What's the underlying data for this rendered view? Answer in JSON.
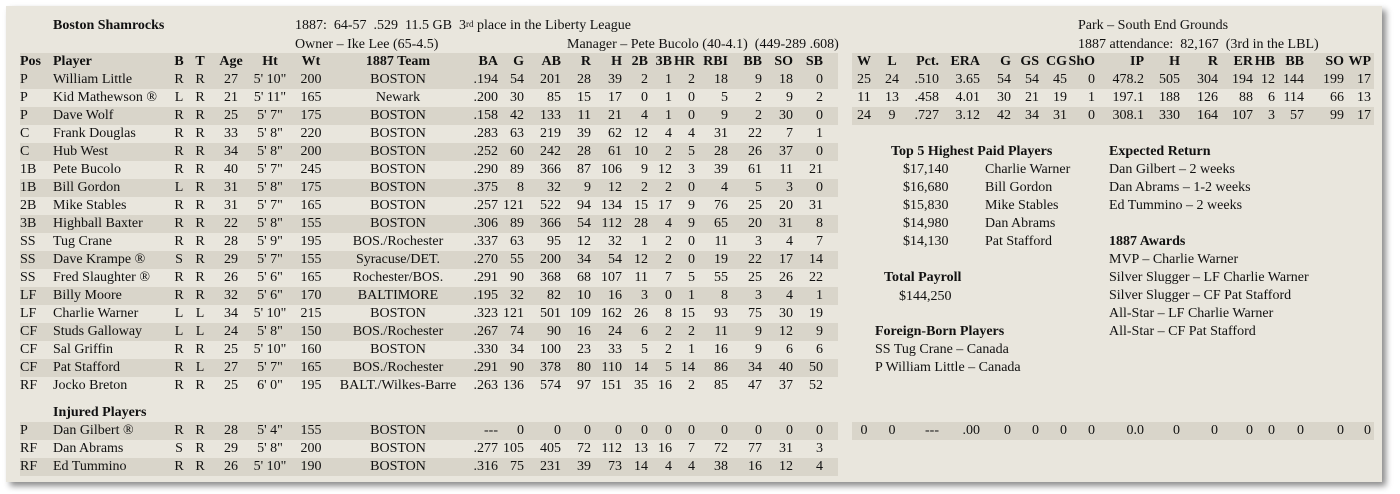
{
  "header": {
    "team_name": "Boston Shamrocks",
    "season_line_pre": "1887:  64-57  .529  11.5 GB  3",
    "season_line_sup": "rd",
    "season_line_post": " place in the Liberty League",
    "owner": "Owner – Ike Lee (65-4.5)",
    "manager": "Manager – Pete Bucolo (40-4.1)  (449-289 .608)",
    "park": "Park – South End Grounds",
    "attendance": "1887 attendance:  82,167  (3rd in the LBL)"
  },
  "columns": [
    "Pos",
    "Player",
    "B",
    "T",
    "Age",
    "Ht",
    "Wt",
    "1887 Team",
    "BA",
    "G",
    "AB",
    "R",
    "H",
    "2B",
    "3B",
    "HR",
    "RBI",
    "BB",
    "SO",
    "SB"
  ],
  "pitch_columns": [
    "W",
    "L",
    "Pct.",
    "ERA",
    "G",
    "GS",
    "CG",
    "ShO",
    "IP",
    "H",
    "R",
    "ER",
    "HB",
    "BB",
    "SO",
    "WP"
  ],
  "players": [
    [
      "P",
      "William Little",
      "R",
      "R",
      "27",
      "5' 10\"",
      "200",
      "BOSTON",
      ".194",
      "54",
      "201",
      "28",
      "39",
      "2",
      "1",
      "2",
      "18",
      "9",
      "18",
      "0"
    ],
    [
      "P",
      "Kid Mathewson ®",
      "L",
      "R",
      "21",
      "5' 11\"",
      "165",
      "Newark",
      ".200",
      "30",
      "85",
      "15",
      "17",
      "0",
      "1",
      "0",
      "5",
      "2",
      "9",
      "2"
    ],
    [
      "P",
      "Dave Wolf",
      "R",
      "R",
      "25",
      "5' 7\"",
      "175",
      "BOSTON",
      ".158",
      "42",
      "133",
      "11",
      "21",
      "4",
      "1",
      "0",
      "9",
      "2",
      "30",
      "0"
    ],
    [
      "C",
      "Frank Douglas",
      "R",
      "R",
      "33",
      "5' 8\"",
      "220",
      "BOSTON",
      ".283",
      "63",
      "219",
      "39",
      "62",
      "12",
      "4",
      "4",
      "31",
      "22",
      "7",
      "1"
    ],
    [
      "C",
      "Hub West",
      "R",
      "R",
      "34",
      "5' 8\"",
      "200",
      "BOSTON",
      ".252",
      "60",
      "242",
      "28",
      "61",
      "10",
      "2",
      "5",
      "28",
      "26",
      "37",
      "0"
    ],
    [
      "1B",
      "Pete Bucolo",
      "R",
      "R",
      "40",
      "5' 7\"",
      "245",
      "BOSTON",
      ".290",
      "89",
      "366",
      "87",
      "106",
      "9",
      "12",
      "3",
      "39",
      "61",
      "11",
      "21"
    ],
    [
      "1B",
      "Bill Gordon",
      "L",
      "R",
      "31",
      "5' 8\"",
      "175",
      "BOSTON",
      ".375",
      "8",
      "32",
      "9",
      "12",
      "2",
      "2",
      "0",
      "4",
      "5",
      "3",
      "0"
    ],
    [
      "2B",
      "Mike Stables",
      "R",
      "R",
      "31",
      "5' 7\"",
      "165",
      "BOSTON",
      ".257",
      "121",
      "522",
      "94",
      "134",
      "15",
      "17",
      "9",
      "76",
      "25",
      "20",
      "31"
    ],
    [
      "3B",
      "Highball Baxter",
      "R",
      "R",
      "22",
      "5' 8\"",
      "155",
      "BOSTON",
      ".306",
      "89",
      "366",
      "54",
      "112",
      "28",
      "4",
      "9",
      "65",
      "20",
      "31",
      "8"
    ],
    [
      "SS",
      "Tug Crane",
      "R",
      "R",
      "28",
      "5' 9\"",
      "195",
      "BOS./Rochester",
      ".337",
      "63",
      "95",
      "12",
      "32",
      "1",
      "2",
      "0",
      "11",
      "3",
      "4",
      "7"
    ],
    [
      "SS",
      "Dave Krampe ®",
      "S",
      "R",
      "29",
      "5' 7\"",
      "155",
      "Syracuse/DET.",
      ".270",
      "55",
      "200",
      "34",
      "54",
      "12",
      "2",
      "0",
      "19",
      "22",
      "17",
      "14"
    ],
    [
      "SS",
      "Fred Slaughter ®",
      "R",
      "R",
      "26",
      "5' 6\"",
      "165",
      "Rochester/BOS.",
      ".291",
      "90",
      "368",
      "68",
      "107",
      "11",
      "7",
      "5",
      "55",
      "25",
      "26",
      "22"
    ],
    [
      "LF",
      "Billy Moore",
      "R",
      "R",
      "32",
      "5' 6\"",
      "170",
      "BALTIMORE",
      ".195",
      "32",
      "82",
      "10",
      "16",
      "3",
      "0",
      "1",
      "8",
      "3",
      "4",
      "1"
    ],
    [
      "LF",
      "Charlie Warner",
      "L",
      "L",
      "34",
      "5' 10\"",
      "215",
      "BOSTON",
      ".323",
      "121",
      "501",
      "109",
      "162",
      "26",
      "8",
      "15",
      "93",
      "75",
      "30",
      "19"
    ],
    [
      "CF",
      "Studs Galloway",
      "L",
      "L",
      "24",
      "5' 8\"",
      "150",
      "BOS./Rochester",
      ".267",
      "74",
      "90",
      "16",
      "24",
      "6",
      "2",
      "2",
      "11",
      "9",
      "12",
      "9"
    ],
    [
      "CF",
      "Sal Griffin",
      "R",
      "R",
      "25",
      "5' 10\"",
      "160",
      "BOSTON",
      ".330",
      "34",
      "100",
      "23",
      "33",
      "5",
      "2",
      "1",
      "16",
      "9",
      "6",
      "6"
    ],
    [
      "CF",
      "Pat Stafford",
      "R",
      "L",
      "27",
      "5' 7\"",
      "165",
      "BOS./Rochester",
      ".291",
      "90",
      "378",
      "80",
      "110",
      "14",
      "5",
      "14",
      "86",
      "34",
      "40",
      "50"
    ],
    [
      "RF",
      "Jocko Breton",
      "R",
      "R",
      "25",
      "6' 0\"",
      "195",
      "BALT./Wilkes-Barre",
      ".263",
      "136",
      "574",
      "97",
      "151",
      "35",
      "16",
      "2",
      "85",
      "47",
      "37",
      "52"
    ]
  ],
  "pitching": [
    [
      "25",
      "24",
      ".510",
      "3.65",
      "54",
      "54",
      "45",
      "0",
      "478.2",
      "505",
      "304",
      "194",
      "12",
      "144",
      "199",
      "17"
    ],
    [
      "11",
      "13",
      ".458",
      "4.01",
      "30",
      "21",
      "19",
      "1",
      "197.1",
      "188",
      "126",
      "88",
      "6",
      "114",
      "66",
      "13"
    ],
    [
      "24",
      "9",
      ".727",
      "3.12",
      "42",
      "34",
      "31",
      "0",
      "308.1",
      "330",
      "164",
      "107",
      "3",
      "57",
      "99",
      "17"
    ]
  ],
  "injured_title": "Injured Players",
  "injured": [
    [
      "P",
      "Dan Gilbert ®",
      "R",
      "R",
      "28",
      "5' 4\"",
      "155",
      "BOSTON",
      "---",
      "0",
      "0",
      "0",
      "0",
      "0",
      "0",
      "0",
      "0",
      "0",
      "0",
      "0"
    ],
    [
      "RF",
      "Dan Abrams",
      "S",
      "R",
      "29",
      "5' 8\"",
      "200",
      "BOSTON",
      ".277",
      "105",
      "405",
      "72",
      "112",
      "13",
      "16",
      "7",
      "72",
      "77",
      "31",
      "3"
    ],
    [
      "RF",
      "Ed Tummino",
      "R",
      "R",
      "26",
      "5' 10\"",
      "190",
      "BOSTON",
      ".316",
      "75",
      "231",
      "39",
      "73",
      "14",
      "4",
      "4",
      "38",
      "16",
      "12",
      "4"
    ]
  ],
  "injured_pitching": [
    "0",
    "0",
    "---",
    ".00",
    "0",
    "0",
    "0",
    "0",
    "0.0",
    "0",
    "0",
    "0",
    "0",
    "0",
    "0",
    "0"
  ],
  "top_paid": {
    "title": "Top 5 Highest Paid Players",
    "rows": [
      [
        "$17,140",
        "Charlie Warner"
      ],
      [
        "$16,680",
        "Bill Gordon"
      ],
      [
        "$15,830",
        "Mike Stables"
      ],
      [
        "$14,980",
        "Dan Abrams"
      ],
      [
        "$14,130",
        "Pat Stafford"
      ]
    ]
  },
  "payroll": {
    "title": "Total Payroll",
    "value": "$144,250"
  },
  "foreign": {
    "title": "Foreign-Born Players",
    "rows": [
      "SS Tug Crane – Canada",
      "P William Little – Canada"
    ]
  },
  "expected": {
    "title": "Expected Return",
    "rows": [
      "Dan Gilbert – 2 weeks",
      "Dan Abrams – 1-2 weeks",
      "Ed Tummino – 2 weeks"
    ]
  },
  "awards": {
    "title": "1887 Awards",
    "rows": [
      "MVP – Charlie Warner",
      "Silver Slugger – LF Charlie Warner",
      "Silver Slugger – CF Pat Stafford",
      "All-Star – LF Charlie Warner",
      "All-Star – CF Pat Stafford"
    ]
  },
  "colors": {
    "card_bg": "#e9e6dd",
    "band_bg": "#d9d5ca",
    "text": "#111111"
  }
}
